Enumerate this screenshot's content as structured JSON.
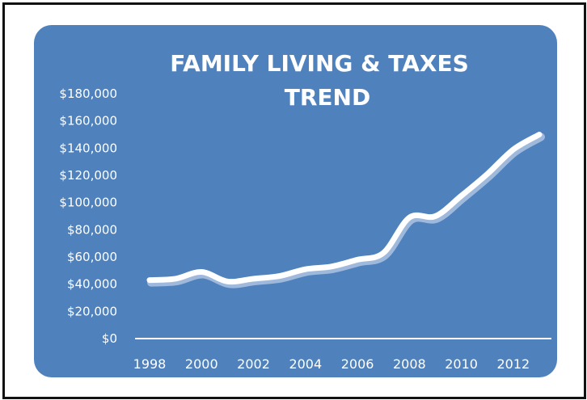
{
  "chart_data": {
    "type": "line",
    "title_lines": [
      "FAMILY  LIVING & TAXES",
      "TREND"
    ],
    "xlabel": "",
    "ylabel": "",
    "y_ticks": [
      "$180,000",
      "$160,000",
      "$140,000",
      "$120,000",
      "$100,000",
      "$80,000",
      "$60,000",
      "$40,000",
      "$20,000",
      "$0"
    ],
    "ylim": [
      0,
      180000
    ],
    "x_tick_labels": [
      "1998",
      "2000",
      "2002",
      "2004",
      "2006",
      "2008",
      "2010",
      "2012"
    ],
    "x": [
      1998,
      1999,
      2000,
      2001,
      2002,
      2003,
      2004,
      2005,
      2006,
      2007,
      2008,
      2009,
      2010,
      2011,
      2012,
      2013
    ],
    "series": [
      {
        "values": [
          43000,
          44000,
          49000,
          42000,
          44000,
          46000,
          51000,
          53000,
          58000,
          63000,
          89000,
          90000,
          105000,
          121000,
          139000,
          150000
        ]
      }
    ],
    "grid": false,
    "drop_lines": true,
    "colors": {
      "background": "#4f81bd",
      "line": "#ffffff",
      "text": "#ffffff",
      "frame": "#111111"
    }
  }
}
